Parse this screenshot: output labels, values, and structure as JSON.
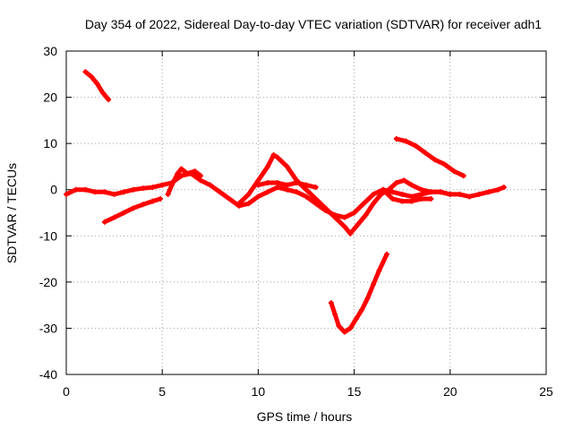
{
  "chart_data": {
    "type": "scatter",
    "title": "Day 354 of 2022, Sidereal Day-to-day VTEC variation (SDTVAR) for receiver adh1",
    "xlabel": "GPS time / hours",
    "ylabel": "SDTVAR / TECUs",
    "xlim": [
      0,
      25
    ],
    "ylim": [
      -40,
      30
    ],
    "xticks": [
      0,
      5,
      10,
      15,
      20,
      25
    ],
    "yticks": [
      30,
      20,
      10,
      0,
      -10,
      -20,
      -30,
      -40
    ],
    "grid": true,
    "legend": "none",
    "marker_color": "#ff0000",
    "series": [
      {
        "x": [
          0.0,
          0.5,
          1.0,
          1.5,
          2.0,
          2.5,
          3.0,
          3.5,
          4.0,
          4.5,
          5.0,
          5.5,
          6.0,
          6.5,
          7.0,
          7.5,
          8.0,
          8.5,
          9.0,
          9.5,
          10.0,
          10.5,
          11.0,
          11.5,
          12.0,
          12.5,
          13.0,
          13.5,
          14.0,
          14.5,
          15.0,
          15.5,
          16.0,
          16.5,
          17.0,
          17.5,
          18.0,
          18.5,
          19.0,
          19.5,
          20.0,
          20.5,
          21.0,
          21.5,
          22.0,
          22.5,
          22.8
        ],
        "y": [
          -1.0,
          0.0,
          0.0,
          -0.5,
          -0.5,
          -1.0,
          -0.5,
          0.0,
          0.3,
          0.5,
          1.0,
          1.5,
          3.0,
          3.5,
          2.0,
          1.0,
          -0.5,
          -2.0,
          -3.5,
          -3.0,
          -1.5,
          -0.5,
          0.5,
          0.0,
          -0.5,
          -1.5,
          -3.0,
          -4.5,
          -5.5,
          -6.0,
          -5.0,
          -3.0,
          -1.0,
          0.0,
          -0.5,
          -1.0,
          -1.5,
          -1.0,
          -0.5,
          -0.5,
          -1.0,
          -1.0,
          -1.5,
          -1.0,
          -0.5,
          0.0,
          0.5
        ]
      },
      {
        "x": [
          1.0,
          1.3,
          1.6,
          1.9,
          2.2
        ],
        "y": [
          25.5,
          24.5,
          23.0,
          21.0,
          19.5
        ]
      },
      {
        "x": [
          2.0,
          2.5,
          3.0,
          3.5,
          4.0,
          4.5,
          4.9
        ],
        "y": [
          -7.0,
          -6.0,
          -5.0,
          -4.0,
          -3.2,
          -2.5,
          -2.0
        ]
      },
      {
        "x": [
          5.3,
          5.5,
          5.8,
          6.0,
          6.3,
          6.7,
          7.0
        ],
        "y": [
          -1.0,
          1.0,
          3.5,
          4.5,
          3.5,
          4.0,
          3.0
        ]
      },
      {
        "x": [
          9.0,
          9.5,
          10.0,
          10.5,
          10.8,
          11.0,
          11.5,
          12.0,
          12.5,
          13.0,
          13.5,
          14.0,
          14.5,
          14.8
        ],
        "y": [
          -3.0,
          -1.0,
          2.0,
          5.0,
          7.5,
          7.0,
          5.0,
          2.0,
          0.0,
          -2.0,
          -4.0,
          -6.0,
          -8.0,
          -9.5
        ]
      },
      {
        "x": [
          10.0,
          10.5,
          11.0,
          11.5,
          12.0,
          12.5,
          13.0
        ],
        "y": [
          1.0,
          1.5,
          1.5,
          1.0,
          1.5,
          1.0,
          0.5
        ]
      },
      {
        "x": [
          14.8,
          15.2,
          15.6,
          16.0,
          16.4,
          16.8,
          17.2,
          17.6,
          18.0,
          18.5,
          19.0,
          19.5,
          20.0
        ],
        "y": [
          -9.5,
          -7.5,
          -5.5,
          -3.0,
          -1.0,
          0.0,
          1.5,
          2.0,
          1.0,
          0.0,
          -0.5,
          -0.5,
          -1.0
        ]
      },
      {
        "x": [
          16.5,
          17.0,
          17.5,
          18.0,
          18.5,
          19.0
        ],
        "y": [
          0.0,
          -2.0,
          -2.5,
          -2.5,
          -2.0,
          -2.0
        ]
      },
      {
        "x": [
          17.2,
          17.7,
          18.2,
          18.7,
          19.2,
          19.7,
          20.2,
          20.7
        ],
        "y": [
          11.0,
          10.5,
          9.5,
          8.0,
          6.5,
          5.5,
          4.0,
          3.0
        ]
      },
      {
        "x": [
          13.8,
          14.0,
          14.2,
          14.5,
          14.8,
          15.1,
          15.4,
          15.7,
          16.0,
          16.3,
          16.7
        ],
        "y": [
          -24.5,
          -27.0,
          -29.5,
          -30.8,
          -30.0,
          -28.0,
          -26.0,
          -23.5,
          -20.5,
          -17.5,
          -14.0
        ]
      }
    ]
  }
}
